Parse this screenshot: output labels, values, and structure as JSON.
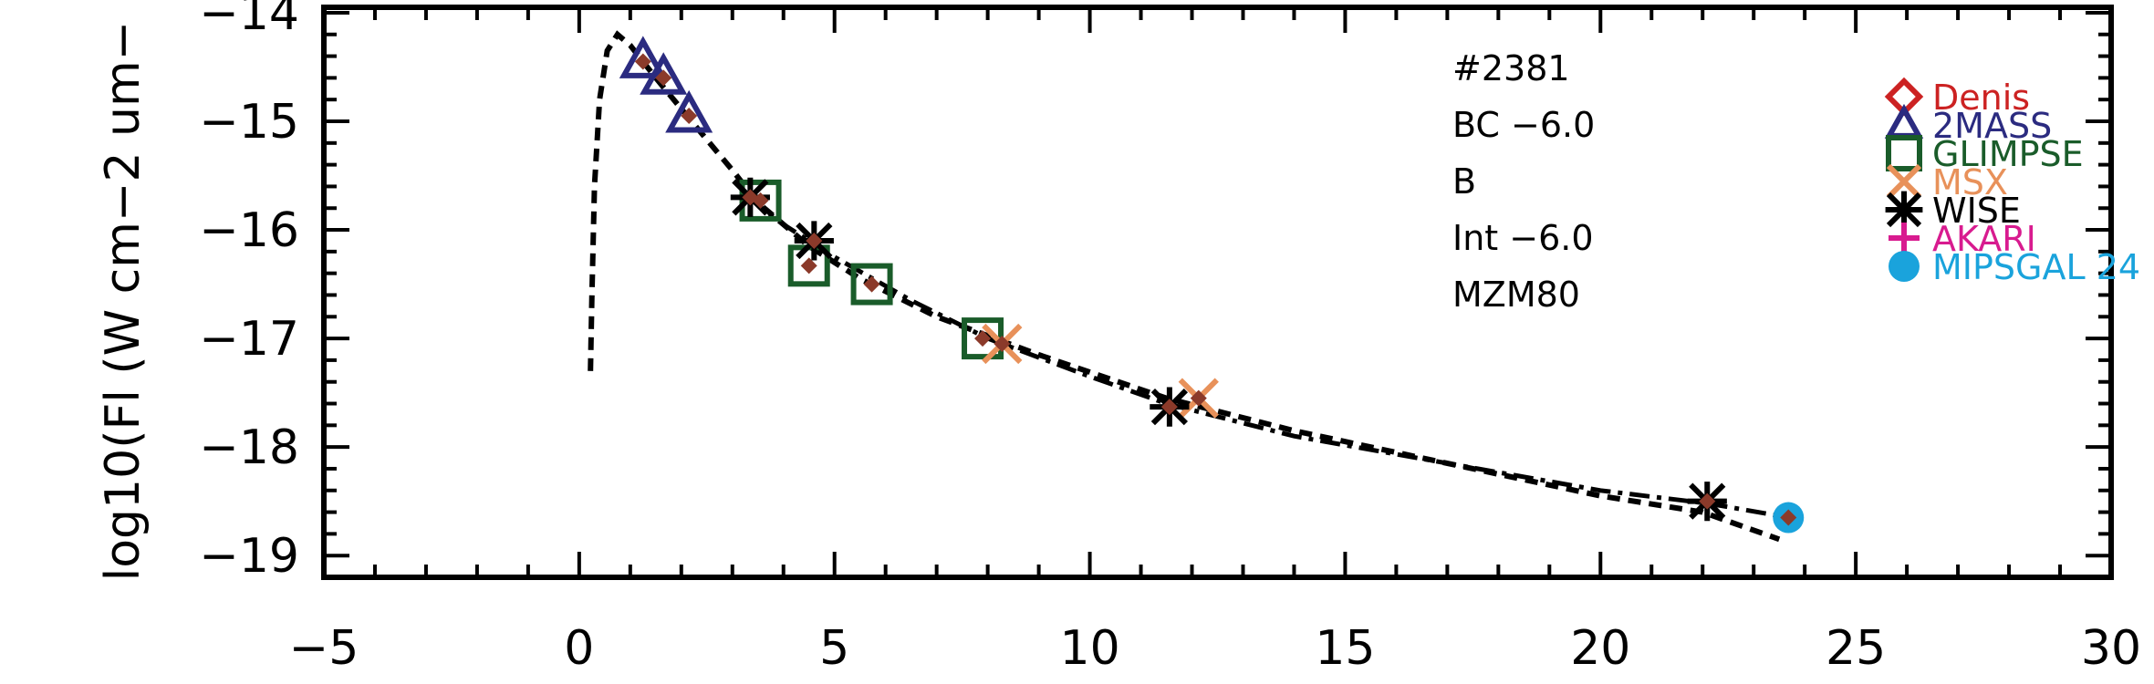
{
  "chart_data": {
    "type": "scatter",
    "title": "",
    "xlabel": "",
    "ylabel": "log10(Fl (W cm−2 um−",
    "xlim": [
      -5,
      30
    ],
    "ylim": [
      -19.2,
      -13.95
    ],
    "x_ticks": [
      -5,
      0,
      5,
      10,
      15,
      20,
      25,
      30
    ],
    "x_tick_labels": [
      "−5",
      "0",
      "5",
      "10",
      "15",
      "20",
      "25",
      "30"
    ],
    "y_ticks": [
      -19,
      -18,
      -17,
      -16,
      -15,
      -14
    ],
    "y_tick_labels": [
      "−19",
      "−18",
      "−17",
      "−16",
      "−15",
      "−14"
    ],
    "annotations": [
      "#2381",
      "BC −6.0",
      "B",
      "Int −6.0",
      "MZM80"
    ],
    "legend_position": "top-right",
    "series": [
      {
        "name": "Denis",
        "marker": "diamond",
        "color": "#cc2222",
        "points": [
          [
            1.25,
            -14.45
          ],
          [
            1.65,
            -14.6
          ],
          [
            2.15,
            -14.95
          ]
        ]
      },
      {
        "name": "2MASS",
        "marker": "triangle",
        "color": "#2b2b80",
        "points": [
          [
            1.25,
            -14.45
          ],
          [
            1.65,
            -14.6
          ],
          [
            2.15,
            -14.95
          ]
        ]
      },
      {
        "name": "GLIMPSE",
        "marker": "square",
        "color": "#1a5c2a",
        "points": [
          [
            3.55,
            -15.73
          ],
          [
            4.5,
            -16.33
          ],
          [
            5.73,
            -16.5
          ],
          [
            7.9,
            -17.0
          ]
        ]
      },
      {
        "name": "MSX",
        "marker": "x",
        "color": "#e8915a",
        "points": [
          [
            8.28,
            -17.05
          ],
          [
            12.13,
            -17.55
          ]
        ]
      },
      {
        "name": "WISE",
        "marker": "asterisk",
        "color": "#000000",
        "points": [
          [
            3.35,
            -15.7
          ],
          [
            4.6,
            -16.1
          ],
          [
            11.56,
            -17.63
          ],
          [
            22.09,
            -18.5
          ]
        ]
      },
      {
        "name": "AKARI",
        "marker": "plus",
        "color": "#d81b8f",
        "points": []
      },
      {
        "name": "MIPSGAL 24",
        "marker": "circle",
        "color": "#1aa3dc",
        "points": [
          [
            23.68,
            -18.65
          ]
        ]
      }
    ],
    "sed_points": {
      "marker": "small-diamond",
      "color": "#8b3a2a",
      "points": [
        [
          1.25,
          -14.45
        ],
        [
          1.65,
          -14.6
        ],
        [
          2.15,
          -14.95
        ],
        [
          3.35,
          -15.7
        ],
        [
          3.55,
          -15.73
        ],
        [
          4.5,
          -16.33
        ],
        [
          4.6,
          -16.1
        ],
        [
          5.73,
          -16.5
        ],
        [
          7.9,
          -17.0
        ],
        [
          8.28,
          -17.05
        ],
        [
          11.56,
          -17.63
        ],
        [
          12.13,
          -17.55
        ],
        [
          22.09,
          -18.5
        ],
        [
          23.68,
          -18.65
        ]
      ]
    },
    "model_dashed": [
      [
        0.22,
        -17.3
      ],
      [
        0.25,
        -16.6
      ],
      [
        0.3,
        -15.6
      ],
      [
        0.4,
        -14.8
      ],
      [
        0.55,
        -14.35
      ],
      [
        0.75,
        -14.2
      ],
      [
        1.0,
        -14.3
      ],
      [
        1.5,
        -14.6
      ],
      [
        2.2,
        -15.0
      ],
      [
        3.0,
        -15.45
      ],
      [
        3.5,
        -15.75
      ],
      [
        4.5,
        -16.15
      ],
      [
        5.5,
        -16.45
      ],
      [
        7.0,
        -16.8
      ],
      [
        9.0,
        -17.15
      ],
      [
        11.5,
        -17.55
      ],
      [
        14.0,
        -17.85
      ],
      [
        16.0,
        -18.05
      ],
      [
        18.0,
        -18.25
      ],
      [
        20.0,
        -18.45
      ],
      [
        22.0,
        -18.6
      ],
      [
        23.5,
        -18.85
      ]
    ],
    "model_dashdot": [
      [
        3.3,
        -15.7
      ],
      [
        4.0,
        -15.95
      ],
      [
        5.0,
        -16.25
      ],
      [
        6.5,
        -16.65
      ],
      [
        8.0,
        -17.0
      ],
      [
        10.0,
        -17.35
      ],
      [
        11.5,
        -17.6
      ],
      [
        14.0,
        -17.9
      ],
      [
        17.0,
        -18.15
      ],
      [
        20.0,
        -18.4
      ],
      [
        22.1,
        -18.52
      ],
      [
        23.7,
        -18.65
      ]
    ]
  }
}
